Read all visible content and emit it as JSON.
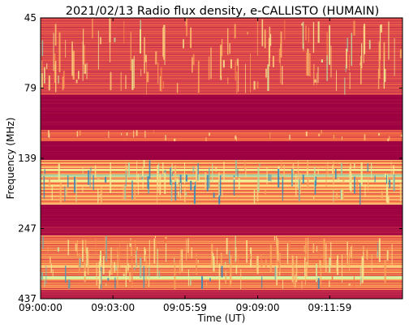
{
  "chart_data": {
    "type": "heatmap",
    "title": "2021/02/13  Radio flux density, e-CALLISTO (HUMAIN)",
    "xlabel": "Time (UT)",
    "ylabel": "Frequency (MHz)",
    "x_ticks": [
      "09:00:00",
      "09:03:00",
      "09:05:59",
      "09:09:00",
      "09:11:59"
    ],
    "x_tick_seconds": [
      0,
      180,
      359,
      540,
      719
    ],
    "xlim_seconds": [
      0,
      900
    ],
    "y_ticks": [
      "45",
      "79",
      "139",
      "247",
      "437"
    ],
    "y_tick_mhz": [
      45,
      79,
      139,
      247,
      437
    ],
    "y_axis": "frequency increases downward",
    "colormap": "Spectral_r",
    "colors": {
      "background": "#9b0d44",
      "low": "#9e0142",
      "mid": "#f46d43",
      "high": "#fee08b",
      "peak": "#e6f598",
      "extreme": "#3288bd"
    },
    "grid": false,
    "legend": "none"
  }
}
